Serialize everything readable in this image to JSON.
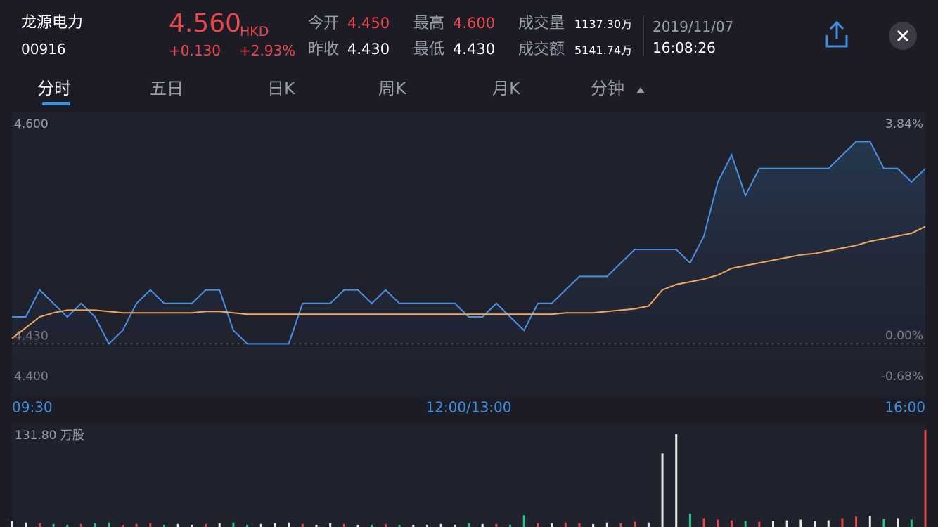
{
  "header": {
    "name": "龙源电力",
    "code": "00916",
    "price": "4.560",
    "currency": "HKD",
    "change": "+0.130",
    "change_pct": "+2.93%",
    "price_color": "#e8474b",
    "stats": [
      {
        "label": "今开",
        "value": "4.450",
        "color": "#e8474b"
      },
      {
        "label": "昨收",
        "value": "4.430",
        "color": "#ffffff"
      },
      {
        "label": "最高",
        "value": "4.600",
        "color": "#e8474b"
      },
      {
        "label": "最低",
        "value": "4.430",
        "color": "#ffffff"
      },
      {
        "label": "成交量",
        "value": "1137.30万",
        "color": "#ffffff"
      },
      {
        "label": "成交额",
        "value": "5141.74万",
        "color": "#ffffff"
      }
    ],
    "date": "2019/11/07",
    "time": "16:08:26"
  },
  "tabs": [
    "分时",
    "五日",
    "日K",
    "周K",
    "月K",
    "分钟"
  ],
  "chart_data": [
    {
      "type": "line",
      "categories": [
        "09:30",
        null,
        null,
        null,
        null,
        null,
        null,
        null,
        null,
        null,
        null,
        null,
        null,
        null,
        null,
        null,
        null,
        null,
        null,
        null,
        null,
        null,
        null,
        null,
        null,
        null,
        null,
        null,
        null,
        null,
        null,
        null,
        null,
        "12:00/13:00",
        null,
        null,
        null,
        null,
        null,
        null,
        null,
        null,
        null,
        null,
        null,
        null,
        null,
        null,
        null,
        null,
        null,
        null,
        null,
        null,
        null,
        null,
        null,
        null,
        null,
        null,
        null,
        null,
        null,
        null,
        null,
        null,
        "16:00"
      ],
      "ylim": [
        4.4,
        4.6
      ],
      "yticks": [
        {
          "value": 4.6,
          "label": "4.600"
        },
        {
          "value": 4.43,
          "label": "4.430"
        },
        {
          "value": 4.4,
          "label": "4.400"
        }
      ],
      "y2lim": [
        -0.68,
        3.84
      ],
      "y2ticks": [
        {
          "value": 3.84,
          "label": "3.84%"
        },
        {
          "value": 0,
          "label": "0.00%"
        },
        {
          "value": -0.68,
          "label": "-0.68%"
        }
      ],
      "series": [
        {
          "color": "#4a90e2",
          "values": [
            4.45,
            4.45,
            4.47,
            4.46,
            4.45,
            4.46,
            4.45,
            4.43,
            4.44,
            4.46,
            4.47,
            4.46,
            4.46,
            4.46,
            4.47,
            4.47,
            4.44,
            4.43,
            4.43,
            4.43,
            4.43,
            4.46,
            4.46,
            4.46,
            4.47,
            4.47,
            4.46,
            4.47,
            4.46,
            4.46,
            4.46,
            4.46,
            4.46,
            4.45,
            4.45,
            4.46,
            4.45,
            4.44,
            4.46,
            4.46,
            4.47,
            4.48,
            4.48,
            4.48,
            4.49,
            4.5,
            4.5,
            4.5,
            4.5,
            4.49,
            4.51,
            4.55,
            4.57,
            4.54,
            4.56,
            4.56,
            4.56,
            4.56,
            4.56,
            4.56,
            4.57,
            4.58,
            4.58,
            4.56,
            4.56,
            4.55,
            4.56
          ]
        },
        {
          "color": "#f0a860",
          "values": [
            4.434,
            4.442,
            4.45,
            4.453,
            4.455,
            4.455,
            4.455,
            4.454,
            4.453,
            4.453,
            4.453,
            4.453,
            4.453,
            4.453,
            4.454,
            4.454,
            4.453,
            4.452,
            4.452,
            4.452,
            4.452,
            4.452,
            4.452,
            4.452,
            4.452,
            4.452,
            4.452,
            4.452,
            4.452,
            4.452,
            4.452,
            4.452,
            4.452,
            4.452,
            4.452,
            4.452,
            4.452,
            4.452,
            4.452,
            4.452,
            4.453,
            4.453,
            4.453,
            4.454,
            4.455,
            4.456,
            4.458,
            4.47,
            4.474,
            4.476,
            4.478,
            4.481,
            4.486,
            4.488,
            4.49,
            4.492,
            4.494,
            4.496,
            4.497,
            4.499,
            4.501,
            4.503,
            4.506,
            4.508,
            4.51,
            4.512,
            4.517
          ]
        }
      ]
    },
    {
      "type": "bar",
      "ylim": [
        0,
        131.8
      ],
      "yticks": [
        {
          "value": 131.8,
          "label": "131.80 万股"
        }
      ],
      "up_color": "#e8474b",
      "down_color": "#2bc48a",
      "flat_color": "#e8e8e8",
      "values": [
        8,
        6,
        5,
        4,
        3,
        4,
        5,
        6,
        3,
        4,
        5,
        3,
        4,
        3,
        4,
        5,
        6,
        3,
        4,
        5,
        6,
        4,
        3,
        5,
        4,
        3,
        3,
        4,
        3,
        3,
        3,
        4,
        3,
        5,
        4,
        4,
        3,
        16,
        5,
        5,
        6,
        5,
        4,
        6,
        5,
        7,
        6,
        100,
        126,
        18,
        12,
        10,
        9,
        8,
        7,
        8,
        9,
        10,
        8,
        9,
        12,
        14,
        15,
        11,
        12,
        10,
        131.8
      ]
    }
  ]
}
